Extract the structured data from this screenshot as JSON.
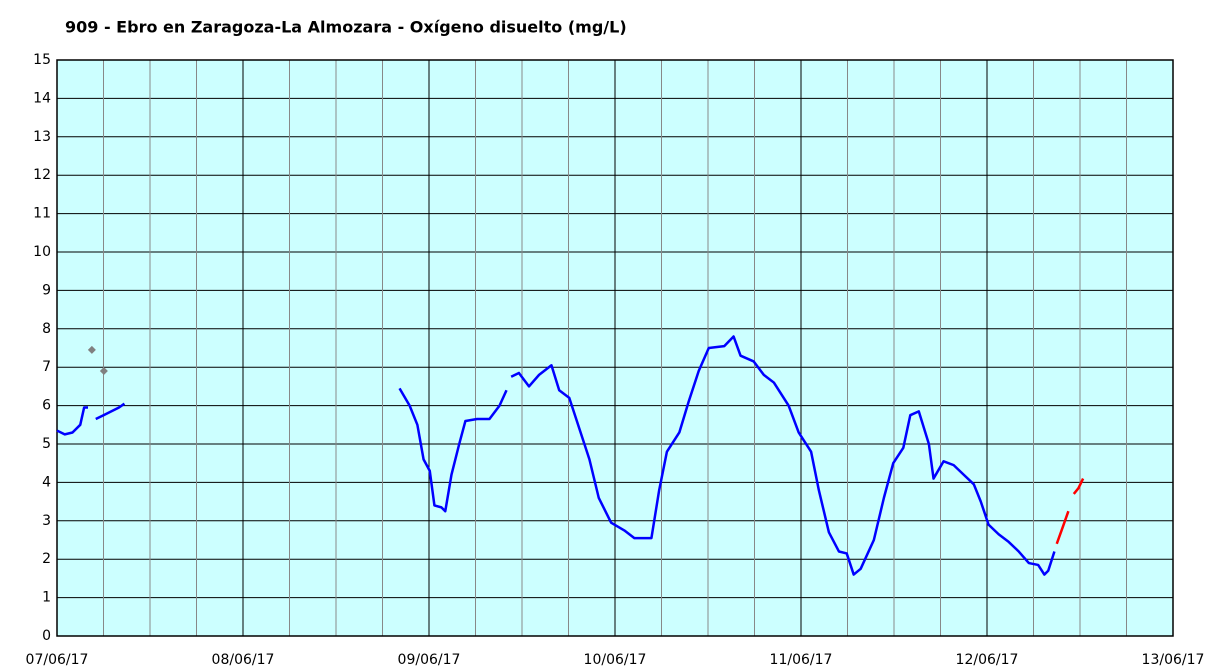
{
  "chart_data": {
    "type": "line",
    "title": "909 - Ebro en Zaragoza-La Almozara - Oxígeno disuelto (mg/L)",
    "xlim": [
      0,
      144
    ],
    "xticks": [
      {
        "value": 0,
        "label": "07/06/17"
      },
      {
        "value": 24,
        "label": "08/06/17"
      },
      {
        "value": 48,
        "label": "09/06/17"
      },
      {
        "value": 72,
        "label": "10/06/17"
      },
      {
        "value": 96,
        "label": "11/06/17"
      },
      {
        "value": 120,
        "label": "12/06/17"
      },
      {
        "value": 144,
        "label": "13/06/17"
      }
    ],
    "xminorticks": [
      6,
      12,
      18,
      30,
      36,
      42,
      54,
      60,
      66,
      78,
      84,
      90,
      102,
      108,
      114,
      126,
      132,
      138
    ],
    "ylim": [
      0,
      15
    ],
    "yticks": [
      0,
      1,
      2,
      3,
      4,
      5,
      6,
      7,
      8,
      9,
      10,
      11,
      12,
      13,
      14,
      15
    ],
    "grid": true,
    "plot_color": "#ccffff",
    "series": [
      {
        "color": "#0000ff",
        "x": [
          0,
          1,
          2,
          3,
          3.5,
          4,
          4.5,
          5,
          5.5,
          6,
          7,
          8,
          8.7,
          30,
          44.2,
          45.5,
          46.5,
          47.3,
          48.1,
          48.7,
          49.6,
          50.1,
          50.9,
          51.9,
          52.7,
          54.2,
          55.8,
          57.1,
          58.0,
          58.3,
          58.6,
          59.6,
          60.9,
          62.2,
          63.8,
          64.8,
          66.1,
          67.4,
          68.7,
          69.9,
          71.5,
          73.2,
          74.5,
          76.7,
          77.7,
          78.7,
          80.3,
          81.5,
          82.8,
          84.1,
          86.1,
          87.3,
          88.2,
          89.9,
          91.2,
          92.5,
          94.4,
          95.7,
          97.3,
          98.3,
          99.6,
          100.9,
          101.9,
          102.8,
          103.7,
          105.4,
          106.7,
          107.9,
          109.2,
          110.1,
          111.2,
          112.5,
          113.1,
          114.4,
          115.7,
          117.0,
          118.3,
          119.2,
          120.2,
          121.5,
          122.8,
          124.1,
          125.4,
          126.6,
          127.4,
          127.9,
          128.7
        ],
        "values": [
          5.35,
          5.25,
          5.3,
          5.5,
          5.95,
          5.95,
          null,
          5.65,
          5.7,
          5.75,
          5.85,
          5.95,
          6.05,
          null,
          6.45,
          6.0,
          5.5,
          4.6,
          4.3,
          3.4,
          3.35,
          3.25,
          4.2,
          5.0,
          5.6,
          5.65,
          5.65,
          6.0,
          6.4,
          null,
          6.75,
          6.85,
          6.5,
          6.8,
          7.05,
          6.4,
          6.2,
          5.4,
          4.6,
          3.6,
          2.95,
          2.75,
          2.55,
          2.55,
          3.8,
          4.8,
          5.3,
          6.1,
          6.9,
          7.5,
          7.55,
          7.8,
          7.3,
          7.15,
          6.8,
          6.6,
          6.0,
          5.3,
          4.8,
          3.8,
          2.7,
          2.2,
          2.15,
          1.6,
          1.75,
          2.5,
          3.6,
          4.5,
          4.9,
          5.75,
          5.85,
          5.0,
          4.1,
          4.55,
          4.45,
          4.2,
          3.95,
          3.5,
          2.9,
          2.65,
          2.45,
          2.2,
          1.9,
          1.85,
          1.6,
          1.7,
          2.2
        ]
      },
      {
        "color": "#ff0000",
        "x": [
          129.0,
          129.8,
          130.5,
          130.9,
          131.2,
          131.8,
          132.4
        ],
        "values": [
          2.4,
          2.85,
          3.25,
          null,
          3.7,
          3.85,
          4.1
        ]
      },
      {
        "color": "#808080",
        "marker": "diamond",
        "x": [
          4.5,
          6.05
        ],
        "values": [
          7.45,
          6.9
        ]
      }
    ]
  }
}
